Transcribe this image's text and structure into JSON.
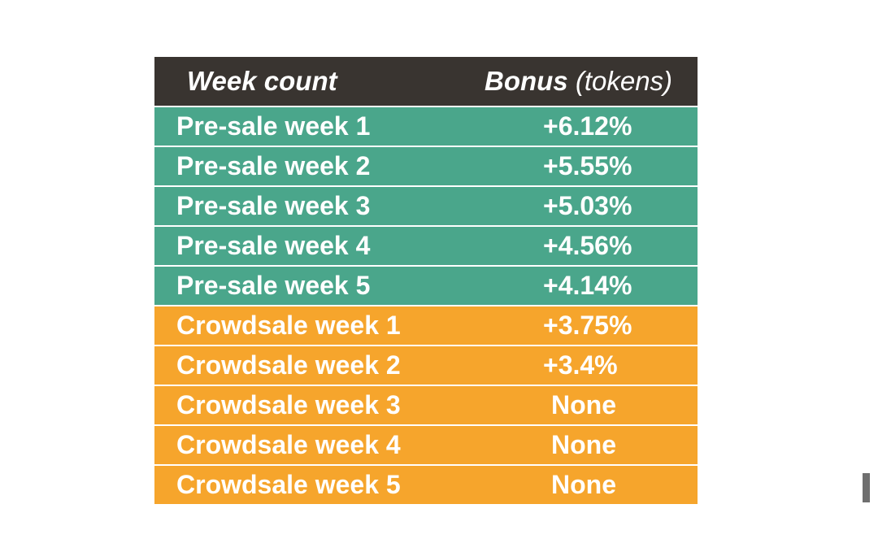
{
  "table": {
    "headers": {
      "week": "Week count",
      "bonus_main": "Bonus",
      "bonus_sub": "(tokens)"
    },
    "rows": [
      {
        "week": "Pre-sale week 1",
        "bonus": "+6.12%",
        "phase": "presale"
      },
      {
        "week": "Pre-sale week 2",
        "bonus": "+5.55%",
        "phase": "presale"
      },
      {
        "week": "Pre-sale week 3",
        "bonus": "+5.03%",
        "phase": "presale"
      },
      {
        "week": "Pre-sale week 4",
        "bonus": "+4.56%",
        "phase": "presale"
      },
      {
        "week": "Pre-sale week 5",
        "bonus": "+4.14%",
        "phase": "presale"
      },
      {
        "week": "Crowdsale week 1",
        "bonus": "+3.75%",
        "phase": "crowdsale"
      },
      {
        "week": "Crowdsale week 2",
        "bonus": "+3.4%",
        "phase": "crowdsale"
      },
      {
        "week": "Crowdsale week 3",
        "bonus": "None",
        "phase": "crowdsale"
      },
      {
        "week": "Crowdsale week 4",
        "bonus": "None",
        "phase": "crowdsale"
      },
      {
        "week": "Crowdsale week 5",
        "bonus": "None",
        "phase": "crowdsale"
      }
    ]
  },
  "colors": {
    "header_bg": "#393430",
    "presale_bg": "#4aa68b",
    "crowdsale_bg": "#f6a52c",
    "text": "#ffffff"
  }
}
